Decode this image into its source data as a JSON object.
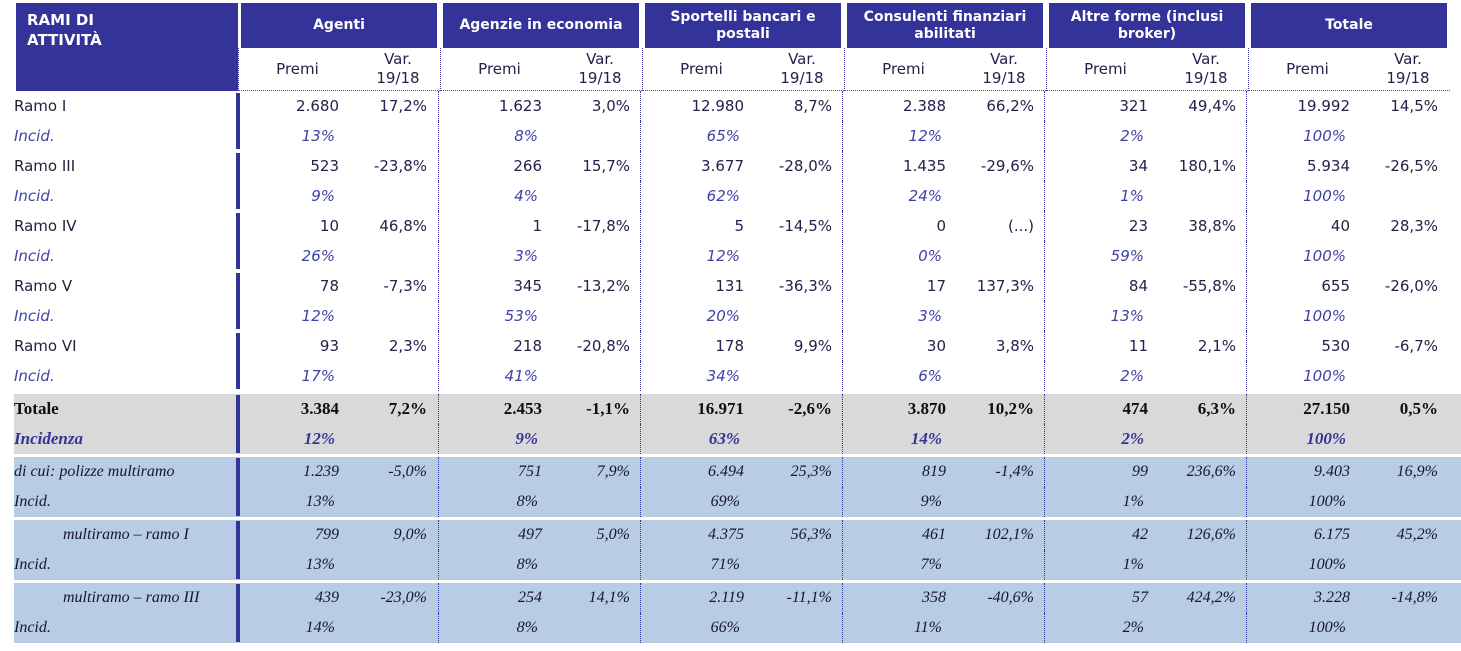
{
  "header": {
    "row_label": "RAMI DI\nATTIVITÀ",
    "premi_label": "Premi",
    "var_label": "Var.\n19/18",
    "groups": [
      "Agenti",
      "Agenzie in economia",
      "Sportelli bancari e postali",
      "Consulenti finanziari abilitati",
      "Altre forme (inclusi broker)",
      "Totale"
    ]
  },
  "colors": {
    "header_bg": "#333399",
    "gray_row_bg": "#d9d9d9",
    "blue_row_bg": "#b8cce4",
    "incid_text": "#3f42a5",
    "divider_blue": "#333399"
  },
  "rows": [
    {
      "label": "Ramo I",
      "incid_label": "Incid.",
      "style": "white",
      "indent": 0,
      "premi": [
        "2.680",
        "1.623",
        "12.980",
        "2.388",
        "321",
        "19.992"
      ],
      "var": [
        "17,2%",
        "3,0%",
        "8,7%",
        "66,2%",
        "49,4%",
        "14,5%"
      ],
      "incid": [
        "13%",
        "8%",
        "65%",
        "12%",
        "2%",
        "100%"
      ]
    },
    {
      "label": "Ramo III",
      "incid_label": "Incid.",
      "style": "white",
      "indent": 0,
      "premi": [
        "523",
        "266",
        "3.677",
        "1.435",
        "34",
        "5.934"
      ],
      "var": [
        "-23,8%",
        "15,7%",
        "-28,0%",
        "-29,6%",
        "180,1%",
        "-26,5%"
      ],
      "incid": [
        "9%",
        "4%",
        "62%",
        "24%",
        "1%",
        "100%"
      ]
    },
    {
      "label": "Ramo IV",
      "incid_label": "Incid.",
      "style": "white",
      "indent": 0,
      "premi": [
        "10",
        "1",
        "5",
        "0",
        "23",
        "40"
      ],
      "var": [
        "46,8%",
        "-17,8%",
        "-14,5%",
        "(...)",
        "38,8%",
        "28,3%"
      ],
      "incid": [
        "26%",
        "3%",
        "12%",
        "0%",
        "59%",
        "100%"
      ]
    },
    {
      "label": "Ramo V",
      "incid_label": "Incid.",
      "style": "white",
      "indent": 0,
      "premi": [
        "78",
        "345",
        "131",
        "17",
        "84",
        "655"
      ],
      "var": [
        "-7,3%",
        "-13,2%",
        "-36,3%",
        "137,3%",
        "-55,8%",
        "-26,0%"
      ],
      "incid": [
        "12%",
        "53%",
        "20%",
        "3%",
        "13%",
        "100%"
      ]
    },
    {
      "label": "Ramo VI",
      "incid_label": "Incid.",
      "style": "white",
      "indent": 0,
      "premi": [
        "93",
        "218",
        "178",
        "30",
        "11",
        "530"
      ],
      "var": [
        "2,3%",
        "-20,8%",
        "9,9%",
        "3,8%",
        "2,1%",
        "-6,7%"
      ],
      "incid": [
        "17%",
        "41%",
        "34%",
        "6%",
        "2%",
        "100%"
      ]
    },
    {
      "label": "Totale",
      "incid_label": "Incidenza",
      "style": "gray",
      "indent": 0,
      "premi": [
        "3.384",
        "2.453",
        "16.971",
        "3.870",
        "474",
        "27.150"
      ],
      "var": [
        "7,2%",
        "-1,1%",
        "-2,6%",
        "10,2%",
        "6,3%",
        "0,5%"
      ],
      "incid": [
        "12%",
        "9%",
        "63%",
        "14%",
        "2%",
        "100%"
      ]
    },
    {
      "label": "di cui: polizze multiramo",
      "incid_label": "Incid.",
      "style": "blue",
      "indent": 0,
      "premi": [
        "1.239",
        "751",
        "6.494",
        "819",
        "99",
        "9.403"
      ],
      "var": [
        "-5,0%",
        "7,9%",
        "25,3%",
        "-1,4%",
        "236,6%",
        "16,9%"
      ],
      "incid": [
        "13%",
        "8%",
        "69%",
        "9%",
        "1%",
        "100%"
      ]
    },
    {
      "label": "multiramo – ramo I",
      "incid_label": "Incid.",
      "style": "blue",
      "indent": 1,
      "premi": [
        "799",
        "497",
        "4.375",
        "461",
        "42",
        "6.175"
      ],
      "var": [
        "9,0%",
        "5,0%",
        "56,3%",
        "102,1%",
        "126,6%",
        "45,2%"
      ],
      "incid": [
        "13%",
        "8%",
        "71%",
        "7%",
        "1%",
        "100%"
      ]
    },
    {
      "label": "multiramo – ramo III",
      "incid_label": "Incid.",
      "style": "blue",
      "indent": 1,
      "premi": [
        "439",
        "254",
        "2.119",
        "358",
        "57",
        "3.228"
      ],
      "var": [
        "-23,0%",
        "14,1%",
        "-11,1%",
        "-40,6%",
        "424,2%",
        "-14,8%"
      ],
      "incid": [
        "14%",
        "8%",
        "66%",
        "11%",
        "2%",
        "100%"
      ]
    }
  ]
}
